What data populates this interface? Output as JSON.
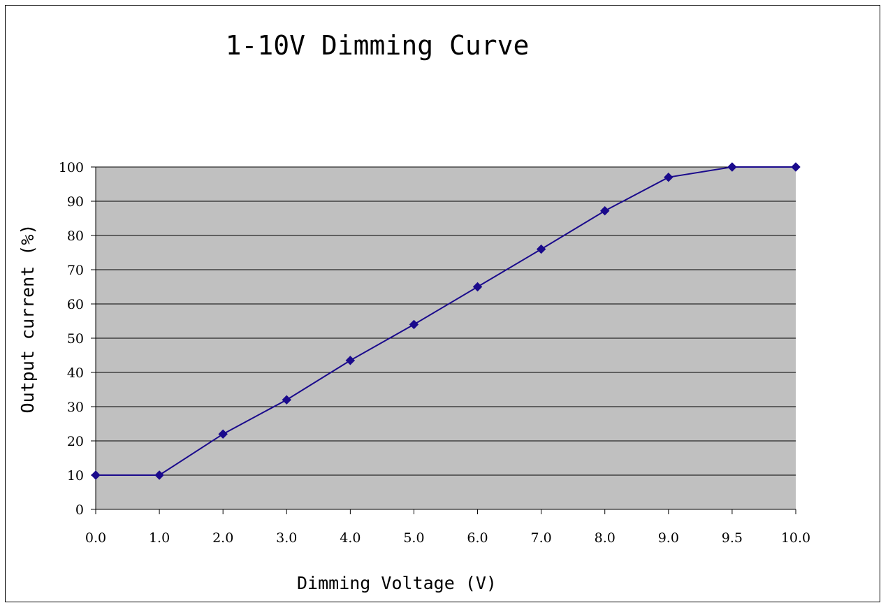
{
  "chart_data": {
    "type": "line",
    "title": "1-10V Dimming Curve",
    "xlabel": "Dimming Voltage (V)",
    "ylabel": "Output current (%)",
    "categories": [
      "0.0",
      "1.0",
      "2.0",
      "3.0",
      "4.0",
      "5.0",
      "6.0",
      "7.0",
      "8.0",
      "9.0",
      "9.5",
      "10.0"
    ],
    "series": [
      {
        "values": [
          10,
          10,
          22,
          32,
          43.5,
          54,
          65,
          76,
          87.2,
          97,
          100,
          100
        ]
      }
    ],
    "ylim": [
      0,
      100
    ],
    "yticks": [
      0,
      10,
      20,
      30,
      40,
      50,
      60,
      70,
      80,
      90,
      100
    ],
    "grid": true,
    "legend": "none",
    "colors": {
      "plot_background": "#c0c0c0",
      "line": "#1a0a8c",
      "marker": "#1a0a8c",
      "gridline": "#000000"
    },
    "marker_shape": "diamond-icon"
  }
}
